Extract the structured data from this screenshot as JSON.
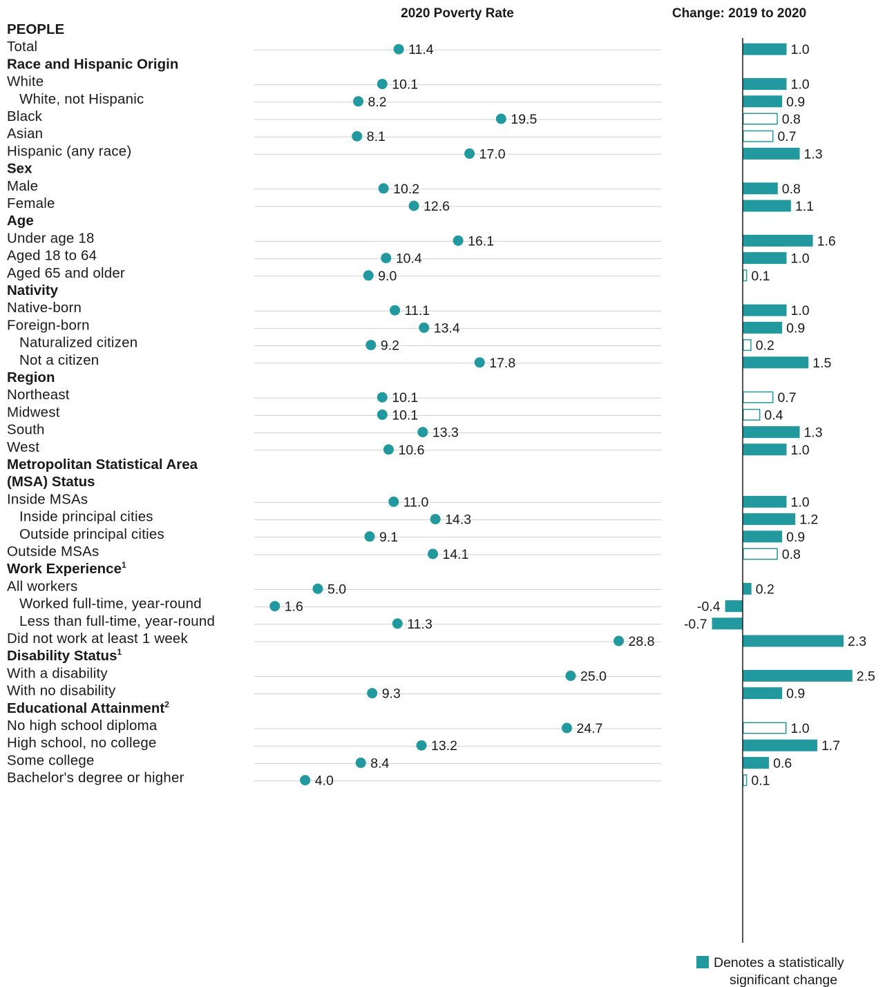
{
  "chart_data": {
    "type": "dot-and-bar",
    "poverty_title": "2020 Poverty Rate",
    "change_title": "Change: 2019 to 2020",
    "legend_label_1": "Denotes a statistically",
    "legend_label_2": "significant change",
    "poverty_axis_range": [
      0,
      30
    ],
    "change_axis_range": [
      -1,
      2.5
    ],
    "colors": {
      "accent": "#21999f",
      "rule": "#cfcfcf",
      "axis": "#1a1a1a"
    },
    "rows": [
      {
        "kind": "header",
        "label": "PEOPLE"
      },
      {
        "kind": "data",
        "label": "Total",
        "rate": 11.4,
        "rate_label": "11.4",
        "change": 1.0,
        "change_label": "1.0",
        "significant": true
      },
      {
        "kind": "header",
        "label": "Race and Hispanic Origin"
      },
      {
        "kind": "data",
        "label": "White",
        "rate": 10.1,
        "rate_label": "10.1",
        "change": 1.0,
        "change_label": "1.0",
        "significant": true
      },
      {
        "kind": "data",
        "label": "White, not Hispanic",
        "indent": true,
        "rate": 8.2,
        "rate_label": "8.2",
        "change": 0.9,
        "change_label": "0.9",
        "significant": true
      },
      {
        "kind": "data",
        "label": "Black",
        "rate": 19.5,
        "rate_label": "19.5",
        "change": 0.8,
        "change_label": "0.8",
        "significant": false
      },
      {
        "kind": "data",
        "label": "Asian",
        "rate": 8.1,
        "rate_label": "8.1",
        "change": 0.7,
        "change_label": "0.7",
        "significant": false
      },
      {
        "kind": "data",
        "label": "Hispanic (any race)",
        "rate": 17.0,
        "rate_label": "17.0",
        "change": 1.3,
        "change_label": "1.3",
        "significant": true
      },
      {
        "kind": "header",
        "label": "Sex"
      },
      {
        "kind": "data",
        "label": "Male",
        "rate": 10.2,
        "rate_label": "10.2",
        "change": 0.8,
        "change_label": "0.8",
        "significant": true
      },
      {
        "kind": "data",
        "label": "Female",
        "rate": 12.6,
        "rate_label": "12.6",
        "change": 1.1,
        "change_label": "1.1",
        "significant": true
      },
      {
        "kind": "header",
        "label": "Age"
      },
      {
        "kind": "data",
        "label": "Under age 18",
        "rate": 16.1,
        "rate_label": "16.1",
        "change": 1.6,
        "change_label": "1.6",
        "significant": true
      },
      {
        "kind": "data",
        "label": "Aged 18 to 64",
        "rate": 10.4,
        "rate_label": "10.4",
        "change": 1.0,
        "change_label": "1.0",
        "significant": true
      },
      {
        "kind": "data",
        "label": "Aged 65 and older",
        "rate": 9.0,
        "rate_label": "9.0",
        "change": 0.1,
        "change_label": "0.1",
        "significant": false
      },
      {
        "kind": "header",
        "label": "Nativity"
      },
      {
        "kind": "data",
        "label": "Native-born",
        "rate": 11.1,
        "rate_label": "11.1",
        "change": 1.0,
        "change_label": "1.0",
        "significant": true
      },
      {
        "kind": "data",
        "label": "Foreign-born",
        "rate": 13.4,
        "rate_label": "13.4",
        "change": 0.9,
        "change_label": "0.9",
        "significant": true
      },
      {
        "kind": "data",
        "label": "Naturalized citizen",
        "indent": true,
        "rate": 9.2,
        "rate_label": "9.2",
        "change": 0.2,
        "change_label": "0.2",
        "significant": false
      },
      {
        "kind": "data",
        "label": "Not a citizen",
        "indent": true,
        "rate": 17.8,
        "rate_label": "17.8",
        "change": 1.5,
        "change_label": "1.5",
        "significant": true
      },
      {
        "kind": "header",
        "label": "Region"
      },
      {
        "kind": "data",
        "label": "Northeast",
        "rate": 10.1,
        "rate_label": "10.1",
        "change": 0.7,
        "change_label": "0.7",
        "significant": false
      },
      {
        "kind": "data",
        "label": "Midwest",
        "rate": 10.1,
        "rate_label": "10.1",
        "change": 0.4,
        "change_label": "0.4",
        "significant": false
      },
      {
        "kind": "data",
        "label": "South",
        "rate": 13.3,
        "rate_label": "13.3",
        "change": 1.3,
        "change_label": "1.3",
        "significant": true
      },
      {
        "kind": "data",
        "label": "West",
        "rate": 10.6,
        "rate_label": "10.6",
        "change": 1.0,
        "change_label": "1.0",
        "significant": true
      },
      {
        "kind": "header",
        "label": "Metropolitan Statistical Area"
      },
      {
        "kind": "header",
        "label": "(MSA) Status"
      },
      {
        "kind": "data",
        "label": "Inside MSAs",
        "rate": 11.0,
        "rate_label": "11.0",
        "change": 1.0,
        "change_label": "1.0",
        "significant": true
      },
      {
        "kind": "data",
        "label": "Inside principal cities",
        "indent": true,
        "rate": 14.3,
        "rate_label": "14.3",
        "change": 1.2,
        "change_label": "1.2",
        "significant": true
      },
      {
        "kind": "data",
        "label": "Outside principal cities",
        "indent": true,
        "rate": 9.1,
        "rate_label": "9.1",
        "change": 0.9,
        "change_label": "0.9",
        "significant": true
      },
      {
        "kind": "data",
        "label": "Outside MSAs",
        "rate": 14.1,
        "rate_label": "14.1",
        "change": 0.8,
        "change_label": "0.8",
        "significant": false
      },
      {
        "kind": "header",
        "label": "Work Experience",
        "sup": "1"
      },
      {
        "kind": "data",
        "label": "All workers",
        "rate": 5.0,
        "rate_label": "5.0",
        "change": 0.2,
        "change_label": "0.2",
        "significant": true
      },
      {
        "kind": "data",
        "label": "Worked full-time, year-round",
        "indent": true,
        "rate": 1.6,
        "rate_label": "1.6",
        "change": -0.4,
        "change_label": "-0.4",
        "significant": true
      },
      {
        "kind": "data",
        "label": "Less than full-time, year-round",
        "indent": true,
        "rate": 11.3,
        "rate_label": "11.3",
        "change": -0.7,
        "change_label": "-0.7",
        "significant": true
      },
      {
        "kind": "data",
        "label": "Did not work at least 1 week",
        "rate": 28.8,
        "rate_label": "28.8",
        "change": 2.3,
        "change_label": "2.3",
        "significant": true
      },
      {
        "kind": "header",
        "label": "Disability Status",
        "sup": "1"
      },
      {
        "kind": "data",
        "label": "With a disability",
        "rate": 25.0,
        "rate_label": "25.0",
        "change": 2.5,
        "change_label": "2.5",
        "significant": true
      },
      {
        "kind": "data",
        "label": "With no disability",
        "rate": 9.3,
        "rate_label": "9.3",
        "change": 0.9,
        "change_label": "0.9",
        "significant": true
      },
      {
        "kind": "header",
        "label": "Educational Attainment",
        "sup": "2"
      },
      {
        "kind": "data",
        "label": "No high school diploma",
        "rate": 24.7,
        "rate_label": "24.7",
        "change": 1.0,
        "change_label": "1.0",
        "significant": false
      },
      {
        "kind": "data",
        "label": "High school, no college",
        "rate": 13.2,
        "rate_label": "13.2",
        "change": 1.7,
        "change_label": "1.7",
        "significant": true
      },
      {
        "kind": "data",
        "label": "Some college",
        "rate": 8.4,
        "rate_label": "8.4",
        "change": 0.6,
        "change_label": "0.6",
        "significant": true
      },
      {
        "kind": "data",
        "label": "Bachelor's degree or higher",
        "rate": 4.0,
        "rate_label": "4.0",
        "change": 0.1,
        "change_label": "0.1",
        "significant": false
      }
    ]
  }
}
